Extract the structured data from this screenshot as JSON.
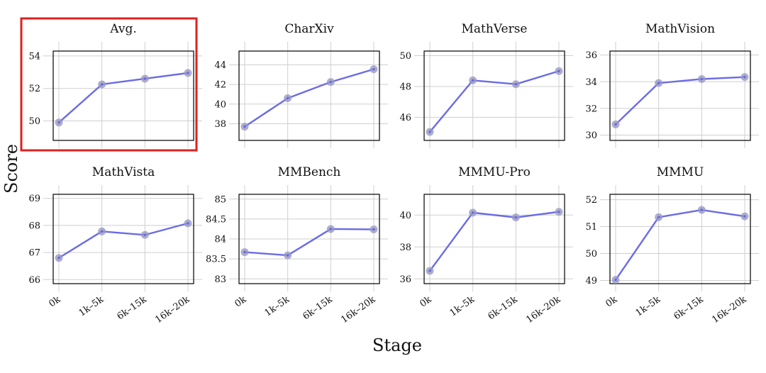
{
  "figure": {
    "ylabel": "Score",
    "xlabel": "Stage",
    "highlighted_panel": "Avg."
  },
  "colors": {
    "line": "#6b6be6",
    "marker": "#9a9ac0",
    "grid": "#cfcfcf",
    "highlight": "#dd2222"
  },
  "chart_data": [
    {
      "type": "line",
      "title": "Avg.",
      "categories": [
        "0k",
        "1k–5k",
        "6k–15k",
        "16k–20k"
      ],
      "values": [
        49.9,
        52.25,
        52.6,
        52.95
      ],
      "yticks": [
        50,
        52,
        54
      ],
      "ylim": [
        48.8,
        54.3
      ]
    },
    {
      "type": "line",
      "title": "CharXiv",
      "categories": [
        "0k",
        "1k–5k",
        "6k–15k",
        "16k–20k"
      ],
      "values": [
        37.7,
        40.6,
        42.25,
        43.55
      ],
      "yticks": [
        38,
        40,
        42,
        44
      ],
      "ylim": [
        36.3,
        45.4
      ]
    },
    {
      "type": "line",
      "title": "MathVerse",
      "categories": [
        "0k",
        "1k–5k",
        "6k–15k",
        "16k–20k"
      ],
      "values": [
        45.05,
        48.4,
        48.15,
        49.0
      ],
      "yticks": [
        46,
        48,
        50
      ],
      "ylim": [
        44.5,
        50.3
      ]
    },
    {
      "type": "line",
      "title": "MathVision",
      "categories": [
        "0k",
        "1k–5k",
        "6k–15k",
        "16k–20k"
      ],
      "values": [
        30.8,
        33.9,
        34.2,
        34.35
      ],
      "yticks": [
        30,
        32,
        34,
        36
      ],
      "ylim": [
        29.6,
        36.3
      ]
    },
    {
      "type": "line",
      "title": "MathVista",
      "categories": [
        "0k",
        "1k–5k",
        "6k–15k",
        "16k–20k"
      ],
      "values": [
        66.8,
        67.78,
        67.65,
        68.08
      ],
      "yticks": [
        66,
        67,
        68,
        69
      ],
      "ylim": [
        65.85,
        69.15
      ]
    },
    {
      "type": "line",
      "title": "MMBench",
      "categories": [
        "0k",
        "1k–5k",
        "6k–15k",
        "16k–20k"
      ],
      "values": [
        83.67,
        83.59,
        84.25,
        84.24
      ],
      "yticks": [
        83,
        83.5,
        84,
        84.5,
        85
      ],
      "yticklabels": [
        "83",
        "83.5",
        "84",
        "84.5",
        "85"
      ],
      "ylim": [
        82.88,
        85.12
      ]
    },
    {
      "type": "line",
      "title": "MMMU-Pro",
      "categories": [
        "0k",
        "1k–5k",
        "6k–15k",
        "16k–20k"
      ],
      "values": [
        36.5,
        40.15,
        39.85,
        40.2
      ],
      "yticks": [
        36,
        38,
        40
      ],
      "ylim": [
        35.7,
        41.3
      ]
    },
    {
      "type": "line",
      "title": "MMMU",
      "categories": [
        "0k",
        "1k–5k",
        "6k–15k",
        "16k–20k"
      ],
      "values": [
        49.02,
        51.35,
        51.62,
        51.38
      ],
      "yticks": [
        49,
        50,
        51,
        52
      ],
      "ylim": [
        48.88,
        52.2
      ]
    }
  ]
}
